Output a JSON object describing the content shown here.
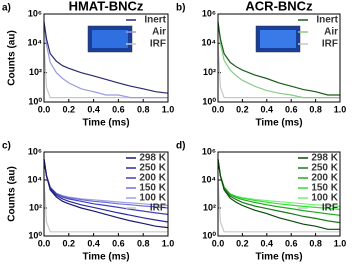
{
  "chart_data": [
    {
      "type": "line",
      "panel_label": "a)",
      "title": "HMAT-BNCz",
      "x_label": "Time (ms)",
      "y_label": "Counts (au)",
      "log_y": true,
      "x": [
        0,
        0.02,
        0.05,
        0.1,
        0.15,
        0.2,
        0.3,
        0.4,
        0.5,
        0.6,
        0.7,
        0.8,
        0.9,
        1.0
      ],
      "xlim": [
        0,
        1.0
      ],
      "xticks": [
        {
          "value": 0,
          "label": "0.0"
        },
        0.2,
        0.4,
        0.6,
        0.8,
        {
          "value": 1,
          "label": "1.0"
        }
      ],
      "ylim": [
        1,
        1000000
      ],
      "yticks": [
        {
          "value": 1,
          "label": "10⁰"
        },
        {
          "value": 100,
          "label": "10²"
        },
        {
          "value": 10000,
          "label": "10⁴"
        },
        {
          "value": 1000000,
          "label": "10⁶"
        }
      ],
      "series": [
        {
          "name": "Inert",
          "color": "#2a2a70",
          "values": [
            300000,
            20000,
            2000,
            600,
            300,
            200,
            100,
            60,
            35,
            20,
            12,
            8,
            5,
            4
          ]
        },
        {
          "name": "Air",
          "color": "#9a9ae0",
          "values": [
            300000,
            8000,
            500,
            100,
            40,
            20,
            8,
            5,
            3,
            3,
            2,
            2,
            2,
            2
          ]
        },
        {
          "name": "IRF",
          "color": "#c8c8c8",
          "values": [
            10000,
            10,
            2,
            2,
            2,
            2,
            2,
            2,
            2,
            2,
            2,
            2,
            2,
            2
          ]
        }
      ]
    },
    {
      "type": "line",
      "panel_label": "b)",
      "title": "ACR-BNCz",
      "x_label": "Time (ms)",
      "log_y": true,
      "x": [
        0,
        0.02,
        0.05,
        0.1,
        0.15,
        0.2,
        0.3,
        0.4,
        0.5,
        0.6,
        0.7,
        0.8,
        0.9,
        1.0
      ],
      "xlim": [
        0,
        1.0
      ],
      "xticks": [
        {
          "value": 0,
          "label": "0.0"
        },
        0.2,
        0.4,
        0.6,
        0.8,
        {
          "value": 1,
          "label": "1.0"
        }
      ],
      "ylim": [
        1,
        1000000
      ],
      "yticks": [
        {
          "value": 1,
          "label": "10⁰"
        },
        {
          "value": 100,
          "label": "10²"
        },
        {
          "value": 10000,
          "label": "10⁴"
        },
        {
          "value": 1000000,
          "label": "10⁶"
        }
      ],
      "series": [
        {
          "name": "Inert",
          "color": "#1a5c1a",
          "values": [
            300000,
            20000,
            2000,
            500,
            250,
            150,
            70,
            40,
            20,
            12,
            7,
            5,
            3,
            3
          ]
        },
        {
          "name": "Air",
          "color": "#88cc88",
          "values": [
            300000,
            10000,
            700,
            150,
            60,
            30,
            12,
            6,
            4,
            3,
            2,
            2,
            2,
            2
          ]
        },
        {
          "name": "IRF",
          "color": "#c8c8c8",
          "values": [
            10000,
            10,
            2,
            2,
            2,
            2,
            2,
            2,
            2,
            2,
            2,
            2,
            2,
            2
          ]
        }
      ]
    },
    {
      "type": "line",
      "panel_label": "c)",
      "x_label": "Time (ms)",
      "y_label": "Counts (au)",
      "log_y": true,
      "x": [
        0,
        0.02,
        0.05,
        0.1,
        0.15,
        0.2,
        0.3,
        0.4,
        0.5,
        0.6,
        0.7,
        0.8,
        0.9,
        1.0
      ],
      "xlim": [
        0,
        1.0
      ],
      "xticks": [
        {
          "value": 0,
          "label": "0.0"
        },
        0.2,
        0.4,
        0.6,
        0.8,
        {
          "value": 1,
          "label": "1.0"
        }
      ],
      "ylim": [
        1,
        1000000
      ],
      "yticks": [
        {
          "value": 1,
          "label": "10⁰"
        },
        {
          "value": 100,
          "label": "10²"
        },
        {
          "value": 10000,
          "label": "10⁴"
        },
        {
          "value": 1000000,
          "label": "10⁶"
        }
      ],
      "series": [
        {
          "name": "298 K",
          "color": "#1a1a6e",
          "values": [
            300000,
            20000,
            2000,
            600,
            300,
            200,
            100,
            60,
            35,
            20,
            12,
            8,
            5,
            4
          ]
        },
        {
          "name": "250 K",
          "color": "#2a2aa0",
          "values": [
            300000,
            20000,
            2500,
            800,
            450,
            300,
            170,
            110,
            70,
            45,
            30,
            20,
            14,
            10
          ]
        },
        {
          "name": "200 K",
          "color": "#4040c0",
          "values": [
            300000,
            20000,
            3000,
            1000,
            600,
            450,
            300,
            200,
            150,
            110,
            80,
            60,
            45,
            35
          ]
        },
        {
          "name": "150 K",
          "color": "#7070d8",
          "values": [
            300000,
            20000,
            3000,
            1100,
            700,
            550,
            400,
            300,
            250,
            200,
            170,
            140,
            120,
            100
          ]
        },
        {
          "name": "100 K",
          "color": "#a0a0e8",
          "values": [
            300000,
            20000,
            3000,
            1100,
            750,
            600,
            450,
            380,
            320,
            270,
            230,
            200,
            170,
            150
          ]
        },
        {
          "name": "IRF",
          "color": "#c8c8c8",
          "values": [
            10000,
            10,
            2,
            2,
            2,
            2,
            2,
            2,
            2,
            2,
            2,
            2,
            2,
            2
          ]
        }
      ]
    },
    {
      "type": "line",
      "panel_label": "d)",
      "x_label": "Time (ms)",
      "log_y": true,
      "x": [
        0,
        0.02,
        0.05,
        0.1,
        0.15,
        0.2,
        0.3,
        0.4,
        0.5,
        0.6,
        0.7,
        0.8,
        0.9,
        1.0
      ],
      "xlim": [
        0,
        1.0
      ],
      "xticks": [
        {
          "value": 0,
          "label": "0.0"
        },
        0.2,
        0.4,
        0.6,
        0.8,
        {
          "value": 1,
          "label": "1.0"
        }
      ],
      "ylim": [
        1,
        1000000
      ],
      "yticks": [
        {
          "value": 1,
          "label": "10⁰"
        },
        {
          "value": 100,
          "label": "10²"
        },
        {
          "value": 10000,
          "label": "10⁴"
        },
        {
          "value": 1000000,
          "label": "10⁶"
        }
      ],
      "series": [
        {
          "name": "298 K",
          "color": "#0a4a0a",
          "values": [
            300000,
            20000,
            2000,
            500,
            250,
            150,
            70,
            40,
            20,
            12,
            7,
            5,
            3,
            3
          ]
        },
        {
          "name": "250 K",
          "color": "#1a7a1a",
          "values": [
            300000,
            20000,
            2500,
            700,
            400,
            250,
            140,
            90,
            60,
            40,
            25,
            18,
            12,
            9
          ]
        },
        {
          "name": "200 K",
          "color": "#22aa22",
          "values": [
            300000,
            20000,
            3000,
            900,
            550,
            400,
            250,
            170,
            120,
            90,
            65,
            50,
            38,
            30
          ]
        },
        {
          "name": "150 K",
          "color": "#33dd33",
          "values": [
            300000,
            20000,
            3000,
            1000,
            650,
            500,
            350,
            260,
            200,
            160,
            130,
            110,
            95,
            80
          ]
        },
        {
          "name": "100 K",
          "color": "#77ee77",
          "values": [
            300000,
            20000,
            3000,
            1000,
            700,
            550,
            420,
            340,
            280,
            240,
            200,
            170,
            150,
            130
          ]
        },
        {
          "name": "IRF",
          "color": "#c8c8c8",
          "values": [
            10000,
            10,
            2,
            2,
            2,
            2,
            2,
            2,
            2,
            2,
            2,
            2,
            2,
            2
          ]
        }
      ]
    }
  ]
}
